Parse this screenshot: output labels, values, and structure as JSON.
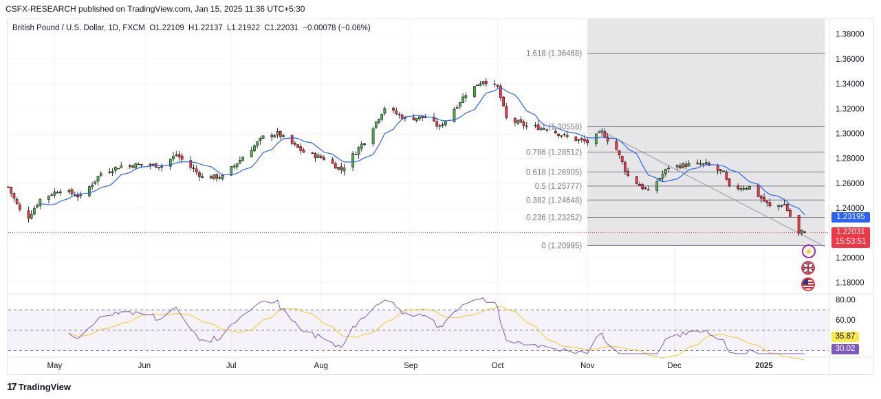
{
  "caption": "CSFX-RESEARCH published on TradingView.com, Jan 15, 2025 11:36 UTC+5:30",
  "legend": {
    "symbol": "British Pound / U.S. Dollar, 1D, FXCM",
    "open": "O1.22109",
    "high": "H1.22137",
    "low": "L1.21922",
    "close": "C1.22031",
    "change": "−0.00078 (−0.06%)"
  },
  "footer": {
    "brand": "TradingView",
    "logo_icon": "tradingview-logo-icon"
  },
  "price_tags": {
    "ma_value": "1.23195",
    "last_price": "1.22031",
    "countdown": "15:53:51",
    "rsi_ma": "35.87",
    "rsi": "30.02"
  },
  "colors": {
    "up": "#4caf50",
    "down": "#f23645",
    "ma": "#2962ff",
    "rsi": "#7e57c2",
    "rsi_ma": "#f7c525",
    "fib_zone": "#e6e6e8",
    "grid": "#f0f3fa"
  },
  "icons": [
    "lightning-icon",
    "uk-flag-icon",
    "us-flag-icon"
  ],
  "chart_data": [
    {
      "type": "candlestick",
      "series_name": "British Pound / U.S. Dollar",
      "y_axis_ticks": [
        "1.38000",
        "1.36000",
        "1.34000",
        "1.32000",
        "1.30000",
        "1.28000",
        "1.26000",
        "1.24000",
        "1.22000",
        "1.20000",
        "1.18000"
      ],
      "ylim": [
        1.172,
        1.392
      ],
      "x_axis_labels": [
        "May",
        "Jun",
        "Jul",
        "Aug",
        "Sep",
        "Oct",
        "Nov",
        "Dec",
        "2025"
      ],
      "close_path": [
        [
          "2024-04-15",
          1.257
        ],
        [
          "2024-04-19",
          1.238
        ],
        [
          "2024-04-22",
          1.233
        ],
        [
          "2024-04-26",
          1.247
        ],
        [
          "2024-05-03",
          1.255
        ],
        [
          "2024-05-10",
          1.249
        ],
        [
          "2024-05-17",
          1.268
        ],
        [
          "2024-05-24",
          1.274
        ],
        [
          "2024-05-31",
          1.275
        ],
        [
          "2024-06-07",
          1.274
        ],
        [
          "2024-06-12",
          1.283
        ],
        [
          "2024-06-21",
          1.265
        ],
        [
          "2024-06-28",
          1.265
        ],
        [
          "2024-07-05",
          1.281
        ],
        [
          "2024-07-12",
          1.297
        ],
        [
          "2024-07-17",
          1.3
        ],
        [
          "2024-07-26",
          1.285
        ],
        [
          "2024-08-02",
          1.28
        ],
        [
          "2024-08-08",
          1.271
        ],
        [
          "2024-08-16",
          1.294
        ],
        [
          "2024-08-23",
          1.321
        ],
        [
          "2024-08-30",
          1.312
        ],
        [
          "2024-09-06",
          1.313
        ],
        [
          "2024-09-11",
          1.305
        ],
        [
          "2024-09-20",
          1.332
        ],
        [
          "2024-09-26",
          1.343
        ],
        [
          "2024-10-01",
          1.337
        ],
        [
          "2024-10-04",
          1.312
        ],
        [
          "2024-10-11",
          1.306
        ],
        [
          "2024-10-18",
          1.304
        ],
        [
          "2024-10-25",
          1.297
        ],
        [
          "2024-11-01",
          1.293
        ],
        [
          "2024-11-06",
          1.301
        ],
        [
          "2024-11-11",
          1.287
        ],
        [
          "2024-11-15",
          1.266
        ],
        [
          "2024-11-22",
          1.253
        ],
        [
          "2024-11-29",
          1.273
        ],
        [
          "2024-12-06",
          1.275
        ],
        [
          "2024-12-12",
          1.275
        ],
        [
          "2024-12-18",
          1.268
        ],
        [
          "2024-12-20",
          1.256
        ],
        [
          "2024-12-27",
          1.257
        ],
        [
          "2025-01-03",
          1.241
        ],
        [
          "2025-01-08",
          1.243
        ],
        [
          "2025-01-13",
          1.219
        ],
        [
          "2025-01-14",
          1.221
        ],
        [
          "2025-01-15",
          1.22031
        ]
      ],
      "moving_average": {
        "last_value": 1.23195
      },
      "last_price": 1.22031
    },
    {
      "type": "fibonacci-retracement",
      "range": [
        "2024-11-01",
        "2025-01-22"
      ],
      "levels": [
        {
          "ratio": "1.618",
          "price": 1.36468,
          "label": "1.618 (1.36468)"
        },
        {
          "ratio": "1",
          "price": 1.30558,
          "label": "1 (1.30558)"
        },
        {
          "ratio": "0.786",
          "price": 1.28512,
          "label": "0.786 (1.28512)"
        },
        {
          "ratio": "0.618",
          "price": 1.26905,
          "label": "0.618 (1.26905)"
        },
        {
          "ratio": "0.5",
          "price": 1.25777,
          "label": "0.5 (1.25777)"
        },
        {
          "ratio": "0.382",
          "price": 1.24648,
          "label": "0.382 (1.24648)"
        },
        {
          "ratio": "0.236",
          "price": 1.23252,
          "label": "0.236 (1.23252)"
        },
        {
          "ratio": "0",
          "price": 1.20995,
          "label": "0 (1.20995)"
        }
      ]
    },
    {
      "type": "line",
      "series_name": "RSI",
      "y_axis_ticks": [
        "80.00",
        "60.00"
      ],
      "ylim": [
        27,
        83
      ],
      "reference_lines": [
        70,
        50,
        30
      ],
      "last_value": 30.02,
      "ma_last_value": 35.87
    }
  ]
}
